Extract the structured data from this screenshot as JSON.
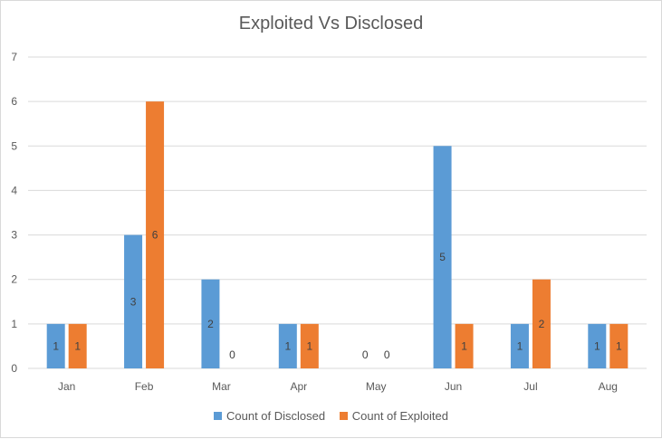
{
  "chart_data": {
    "type": "bar",
    "title": "Exploited Vs Disclosed",
    "categories": [
      "Jan",
      "Feb",
      "Mar",
      "Apr",
      "May",
      "Jun",
      "Jul",
      "Aug"
    ],
    "series": [
      {
        "name": "Count of Disclosed",
        "color": "#5b9bd5",
        "values": [
          1,
          3,
          2,
          1,
          0,
          5,
          1,
          1
        ]
      },
      {
        "name": "Count of Exploited",
        "color": "#ed7d31",
        "values": [
          1,
          6,
          0,
          1,
          0,
          1,
          2,
          1
        ]
      }
    ],
    "yticks": [
      "0",
      "1",
      "2",
      "3",
      "4",
      "5",
      "6",
      "7"
    ],
    "ylim": [
      0,
      7
    ],
    "grid": true,
    "legend": "bottom",
    "xlabel": "",
    "ylabel": ""
  }
}
